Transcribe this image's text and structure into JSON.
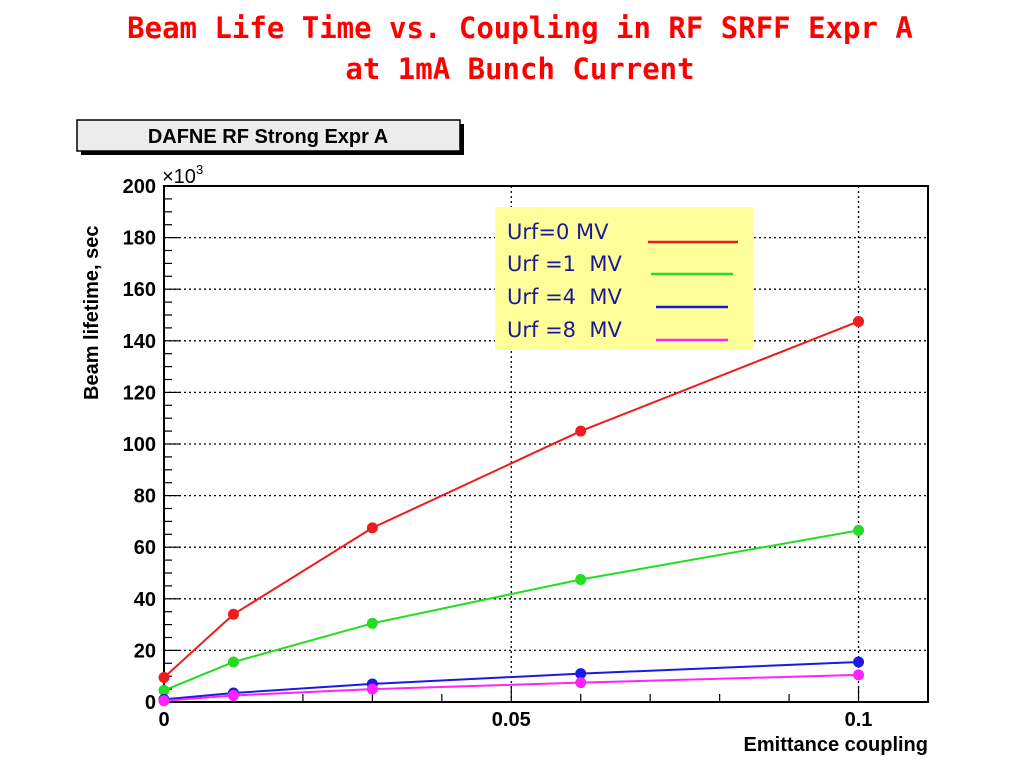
{
  "slide_title": {
    "line1": "Beam Life Time vs. Coupling in RF SRFF Expr A",
    "line2": "at 1mA Bunch Current"
  },
  "chart_data": {
    "type": "line",
    "title": "DAFNE RF Strong Expr A",
    "xlabel": "Emittance coupling",
    "ylabel": "Beam lifetime, sec",
    "y_multiplier": "×10",
    "y_multiplier_exp": "3",
    "xlim": [
      0,
      0.11
    ],
    "ylim": [
      0,
      200
    ],
    "x_ticks": [
      0,
      0.05,
      0.1
    ],
    "x_tick_labels": [
      "0",
      "0.05",
      "0.1"
    ],
    "y_ticks": [
      0,
      20,
      40,
      60,
      80,
      100,
      120,
      140,
      160,
      180,
      200
    ],
    "y_tick_labels": [
      "0",
      "20",
      "40",
      "60",
      "80",
      "100",
      "120",
      "140",
      "160",
      "180",
      "200"
    ],
    "grid": true,
    "legend_position": "top-right",
    "legend_background": "#ffff99",
    "x": [
      0,
      0.01,
      0.03,
      0.06,
      0.1
    ],
    "series": [
      {
        "name": "Urf=0 MV",
        "color": "#ee1c1c",
        "values": [
          9.5,
          34,
          67.5,
          105,
          147.5
        ]
      },
      {
        "name": "Urf =1  MV",
        "color": "#22dd22",
        "values": [
          4.5,
          15.5,
          30.5,
          47.5,
          66.5
        ]
      },
      {
        "name": "Urf =4  MV",
        "color": "#1a1ae6",
        "values": [
          1,
          3.5,
          7,
          11,
          15.5
        ]
      },
      {
        "name": "Urf =8  MV",
        "color": "#ff22ff",
        "values": [
          0.5,
          2.5,
          5,
          7.5,
          10.5
        ]
      }
    ]
  }
}
